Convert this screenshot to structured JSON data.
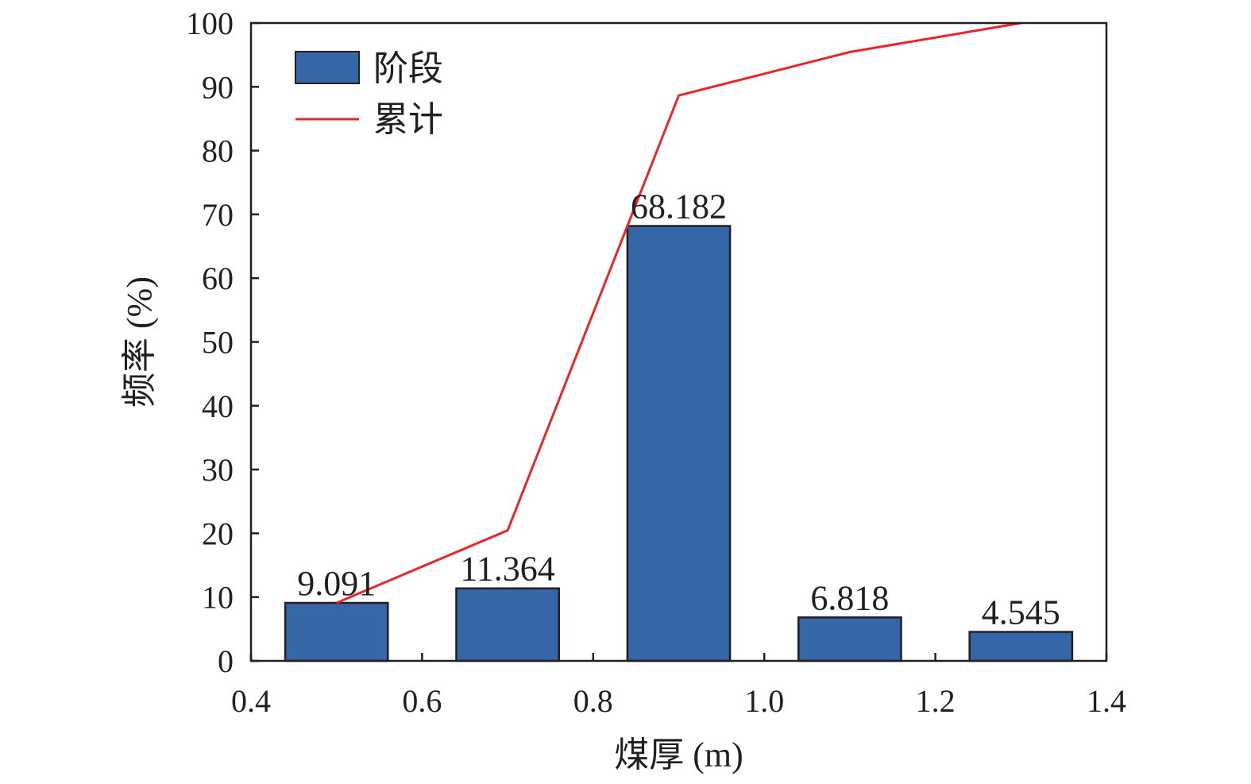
{
  "chart_data": {
    "type": "bar",
    "xlabel": "煤厚 (m)",
    "ylabel": "频率 (%)",
    "xlim": [
      0.4,
      1.4
    ],
    "ylim": [
      0,
      100
    ],
    "xticks": [
      "0.4",
      "0.6",
      "0.8",
      "1.0",
      "1.2",
      "1.4"
    ],
    "yticks": [
      "0",
      "10",
      "20",
      "30",
      "40",
      "50",
      "60",
      "70",
      "80",
      "90",
      "100"
    ],
    "bar_width": 0.12,
    "series": [
      {
        "name": "阶段",
        "kind": "bar",
        "color": "#3566a8",
        "x": [
          0.5,
          0.7,
          0.9,
          1.1,
          1.3
        ],
        "values": [
          9.091,
          11.364,
          68.182,
          6.818,
          4.545
        ],
        "labels": [
          "9.091",
          "11.364",
          "68.182",
          "6.818",
          "4.545"
        ]
      },
      {
        "name": "累计",
        "kind": "line",
        "color": "#e8262b",
        "x": [
          0.5,
          0.7,
          0.9,
          1.1,
          1.3
        ],
        "values": [
          9.091,
          20.455,
          88.637,
          95.455,
          100
        ]
      }
    ],
    "legend": "top-left",
    "grid": false
  }
}
